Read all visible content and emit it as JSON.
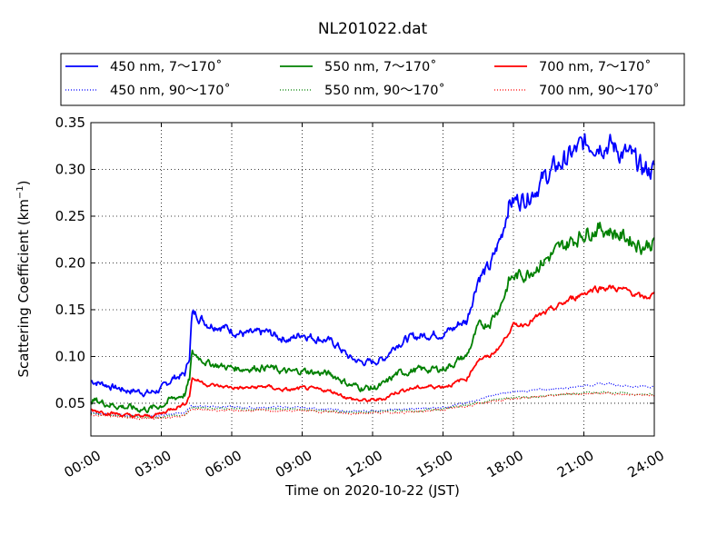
{
  "chart_data": {
    "type": "line",
    "title": "NL201022.dat",
    "xlabel": "Time on 2020-10-22 (JST)",
    "ylabel": "Scattering Coefficient (km",
    "ylabel_sup": "−1",
    "ylabel_close": ")",
    "xlim": [
      0,
      24
    ],
    "ylim": [
      0.015,
      0.35
    ],
    "x_ticks": [
      0,
      3,
      6,
      9,
      12,
      15,
      18,
      21,
      24
    ],
    "x_tick_labels": [
      "00:00",
      "03:00",
      "06:00",
      "09:00",
      "12:00",
      "15:00",
      "18:00",
      "21:00",
      "24:00"
    ],
    "y_ticks": [
      0.05,
      0.1,
      0.15,
      0.2,
      0.25,
      0.3,
      0.35
    ],
    "y_tick_labels": [
      "0.05",
      "0.10",
      "0.15",
      "0.20",
      "0.25",
      "0.30",
      "0.35"
    ],
    "grid": true,
    "legend_position": "top, outside plot",
    "series": [
      {
        "name": "450 nm, 7～170˚",
        "color": "#0000ff",
        "style": "solid",
        "x": [
          0,
          0.5,
          1,
          1.5,
          2,
          2.5,
          3,
          3.5,
          4,
          4.2,
          4.3,
          4.5,
          5,
          5.5,
          6,
          6.5,
          7,
          7.5,
          8,
          8.5,
          9,
          9.5,
          10,
          10.5,
          11,
          11.5,
          12,
          12.5,
          13,
          13.5,
          14,
          14.5,
          15,
          15.5,
          15.7,
          16,
          16.5,
          17,
          17.5,
          17.8,
          18,
          18.5,
          19,
          19.5,
          20,
          20.5,
          21,
          21.5,
          22,
          22.5,
          23,
          23.5,
          24
        ],
        "y": [
          0.074,
          0.071,
          0.067,
          0.064,
          0.063,
          0.061,
          0.065,
          0.077,
          0.081,
          0.1,
          0.145,
          0.145,
          0.135,
          0.133,
          0.128,
          0.124,
          0.124,
          0.126,
          0.121,
          0.118,
          0.125,
          0.12,
          0.118,
          0.112,
          0.099,
          0.094,
          0.094,
          0.098,
          0.113,
          0.119,
          0.122,
          0.124,
          0.125,
          0.13,
          0.136,
          0.137,
          0.185,
          0.195,
          0.23,
          0.265,
          0.266,
          0.27,
          0.282,
          0.295,
          0.306,
          0.316,
          0.326,
          0.33,
          0.328,
          0.32,
          0.313,
          0.3,
          0.3
        ]
      },
      {
        "name": "450 nm, 90～170˚",
        "color": "#0000ff",
        "style": "dotted",
        "x": [
          0,
          1,
          2,
          3,
          4,
          4.3,
          5,
          6,
          7,
          8,
          9,
          10,
          11,
          12,
          13,
          14,
          15,
          16,
          17,
          18,
          19,
          20,
          21,
          22,
          23,
          24
        ],
        "y": [
          0.04,
          0.038,
          0.036,
          0.037,
          0.04,
          0.047,
          0.047,
          0.046,
          0.045,
          0.046,
          0.045,
          0.044,
          0.041,
          0.042,
          0.043,
          0.044,
          0.046,
          0.05,
          0.058,
          0.062,
          0.064,
          0.066,
          0.069,
          0.071,
          0.068,
          0.068
        ]
      },
      {
        "name": "550 nm, 7～170˚",
        "color": "#008000",
        "style": "solid",
        "x": [
          0,
          0.5,
          1,
          1.5,
          2,
          2.5,
          3,
          3.5,
          4,
          4.2,
          4.3,
          4.5,
          5,
          5.5,
          6,
          6.5,
          7,
          7.5,
          8,
          8.5,
          9,
          9.5,
          10,
          10.5,
          11,
          11.5,
          12,
          12.5,
          13,
          13.5,
          14,
          14.5,
          15,
          15.5,
          15.7,
          16,
          16.5,
          17,
          17.5,
          17.8,
          18,
          18.5,
          19,
          19.5,
          20,
          20.5,
          21,
          21.5,
          22,
          22.5,
          23,
          23.5,
          24
        ],
        "y": [
          0.054,
          0.051,
          0.048,
          0.046,
          0.044,
          0.044,
          0.048,
          0.055,
          0.06,
          0.075,
          0.103,
          0.101,
          0.093,
          0.09,
          0.088,
          0.087,
          0.088,
          0.089,
          0.085,
          0.083,
          0.085,
          0.083,
          0.082,
          0.078,
          0.07,
          0.067,
          0.066,
          0.07,
          0.081,
          0.084,
          0.086,
          0.086,
          0.087,
          0.093,
          0.097,
          0.1,
          0.131,
          0.137,
          0.158,
          0.18,
          0.185,
          0.188,
          0.197,
          0.206,
          0.215,
          0.224,
          0.232,
          0.237,
          0.236,
          0.23,
          0.225,
          0.218,
          0.222
        ]
      },
      {
        "name": "550 nm, 90～170˚",
        "color": "#008000",
        "style": "dotted",
        "x": [
          0,
          1,
          2,
          3,
          4,
          4.3,
          5,
          6,
          7,
          8,
          9,
          10,
          11,
          12,
          13,
          14,
          15,
          16,
          17,
          18,
          19,
          20,
          21,
          22,
          23,
          24
        ],
        "y": [
          0.039,
          0.037,
          0.035,
          0.035,
          0.038,
          0.045,
          0.045,
          0.044,
          0.043,
          0.044,
          0.043,
          0.042,
          0.04,
          0.041,
          0.042,
          0.042,
          0.044,
          0.048,
          0.053,
          0.056,
          0.057,
          0.059,
          0.061,
          0.062,
          0.06,
          0.059
        ]
      },
      {
        "name": "700 nm, 7～170˚",
        "color": "#ff0000",
        "style": "solid",
        "x": [
          0,
          0.5,
          1,
          1.5,
          2,
          2.5,
          3,
          3.5,
          4,
          4.2,
          4.3,
          4.5,
          5,
          5.5,
          6,
          6.5,
          7,
          7.5,
          8,
          8.5,
          9,
          9.5,
          10,
          10.5,
          11,
          11.5,
          12,
          12.5,
          13,
          13.5,
          14,
          14.5,
          15,
          15.5,
          15.7,
          16,
          16.5,
          17,
          17.5,
          17.8,
          18,
          18.5,
          19,
          19.5,
          20,
          20.5,
          21,
          21.5,
          22,
          22.5,
          23,
          23.5,
          24
        ],
        "y": [
          0.043,
          0.041,
          0.039,
          0.037,
          0.036,
          0.036,
          0.039,
          0.045,
          0.049,
          0.058,
          0.077,
          0.075,
          0.07,
          0.068,
          0.067,
          0.066,
          0.067,
          0.068,
          0.065,
          0.064,
          0.066,
          0.065,
          0.064,
          0.061,
          0.055,
          0.053,
          0.053,
          0.055,
          0.062,
          0.065,
          0.067,
          0.068,
          0.068,
          0.071,
          0.074,
          0.076,
          0.097,
          0.1,
          0.113,
          0.127,
          0.133,
          0.135,
          0.142,
          0.148,
          0.155,
          0.162,
          0.168,
          0.173,
          0.174,
          0.172,
          0.169,
          0.162,
          0.166
        ]
      },
      {
        "name": "700 nm, 90～170˚",
        "color": "#ff0000",
        "style": "dotted",
        "x": [
          0,
          1,
          2,
          3,
          4,
          4.3,
          5,
          6,
          7,
          8,
          9,
          10,
          11,
          12,
          13,
          14,
          15,
          16,
          17,
          18,
          19,
          20,
          21,
          22,
          23,
          24
        ],
        "y": [
          0.038,
          0.036,
          0.034,
          0.034,
          0.037,
          0.043,
          0.043,
          0.042,
          0.042,
          0.042,
          0.042,
          0.041,
          0.039,
          0.04,
          0.04,
          0.041,
          0.043,
          0.047,
          0.052,
          0.055,
          0.057,
          0.059,
          0.06,
          0.061,
          0.059,
          0.058
        ]
      }
    ]
  }
}
